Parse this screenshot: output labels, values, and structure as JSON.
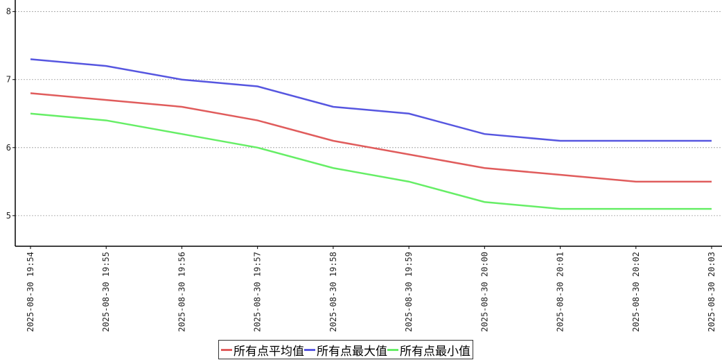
{
  "chart_data": {
    "type": "line",
    "categories": [
      "2025-08-30 19:54",
      "2025-08-30 19:55",
      "2025-08-30 19:56",
      "2025-08-30 19:57",
      "2025-08-30 19:58",
      "2025-08-30 19:59",
      "2025-08-30 20:00",
      "2025-08-30 20:01",
      "2025-08-30 20:02",
      "2025-08-30 20:03"
    ],
    "series": [
      {
        "name": "所有点平均值",
        "color": "#e05c5c",
        "values": [
          6.8,
          6.7,
          6.6,
          6.4,
          6.1,
          5.9,
          5.7,
          5.6,
          5.5,
          5.5
        ]
      },
      {
        "name": "所有点最大值",
        "color": "#5656e0",
        "values": [
          7.3,
          7.2,
          7.0,
          6.9,
          6.6,
          6.5,
          6.2,
          6.1,
          6.1,
          6.1
        ]
      },
      {
        "name": "所有点最小值",
        "color": "#66ee66",
        "values": [
          6.5,
          6.4,
          6.2,
          6.0,
          5.7,
          5.5,
          5.2,
          5.1,
          5.1,
          5.1
        ]
      }
    ],
    "ylim": [
      4.55,
      8.17
    ],
    "yticks": [
      5,
      6,
      7,
      8
    ],
    "grid": true
  }
}
